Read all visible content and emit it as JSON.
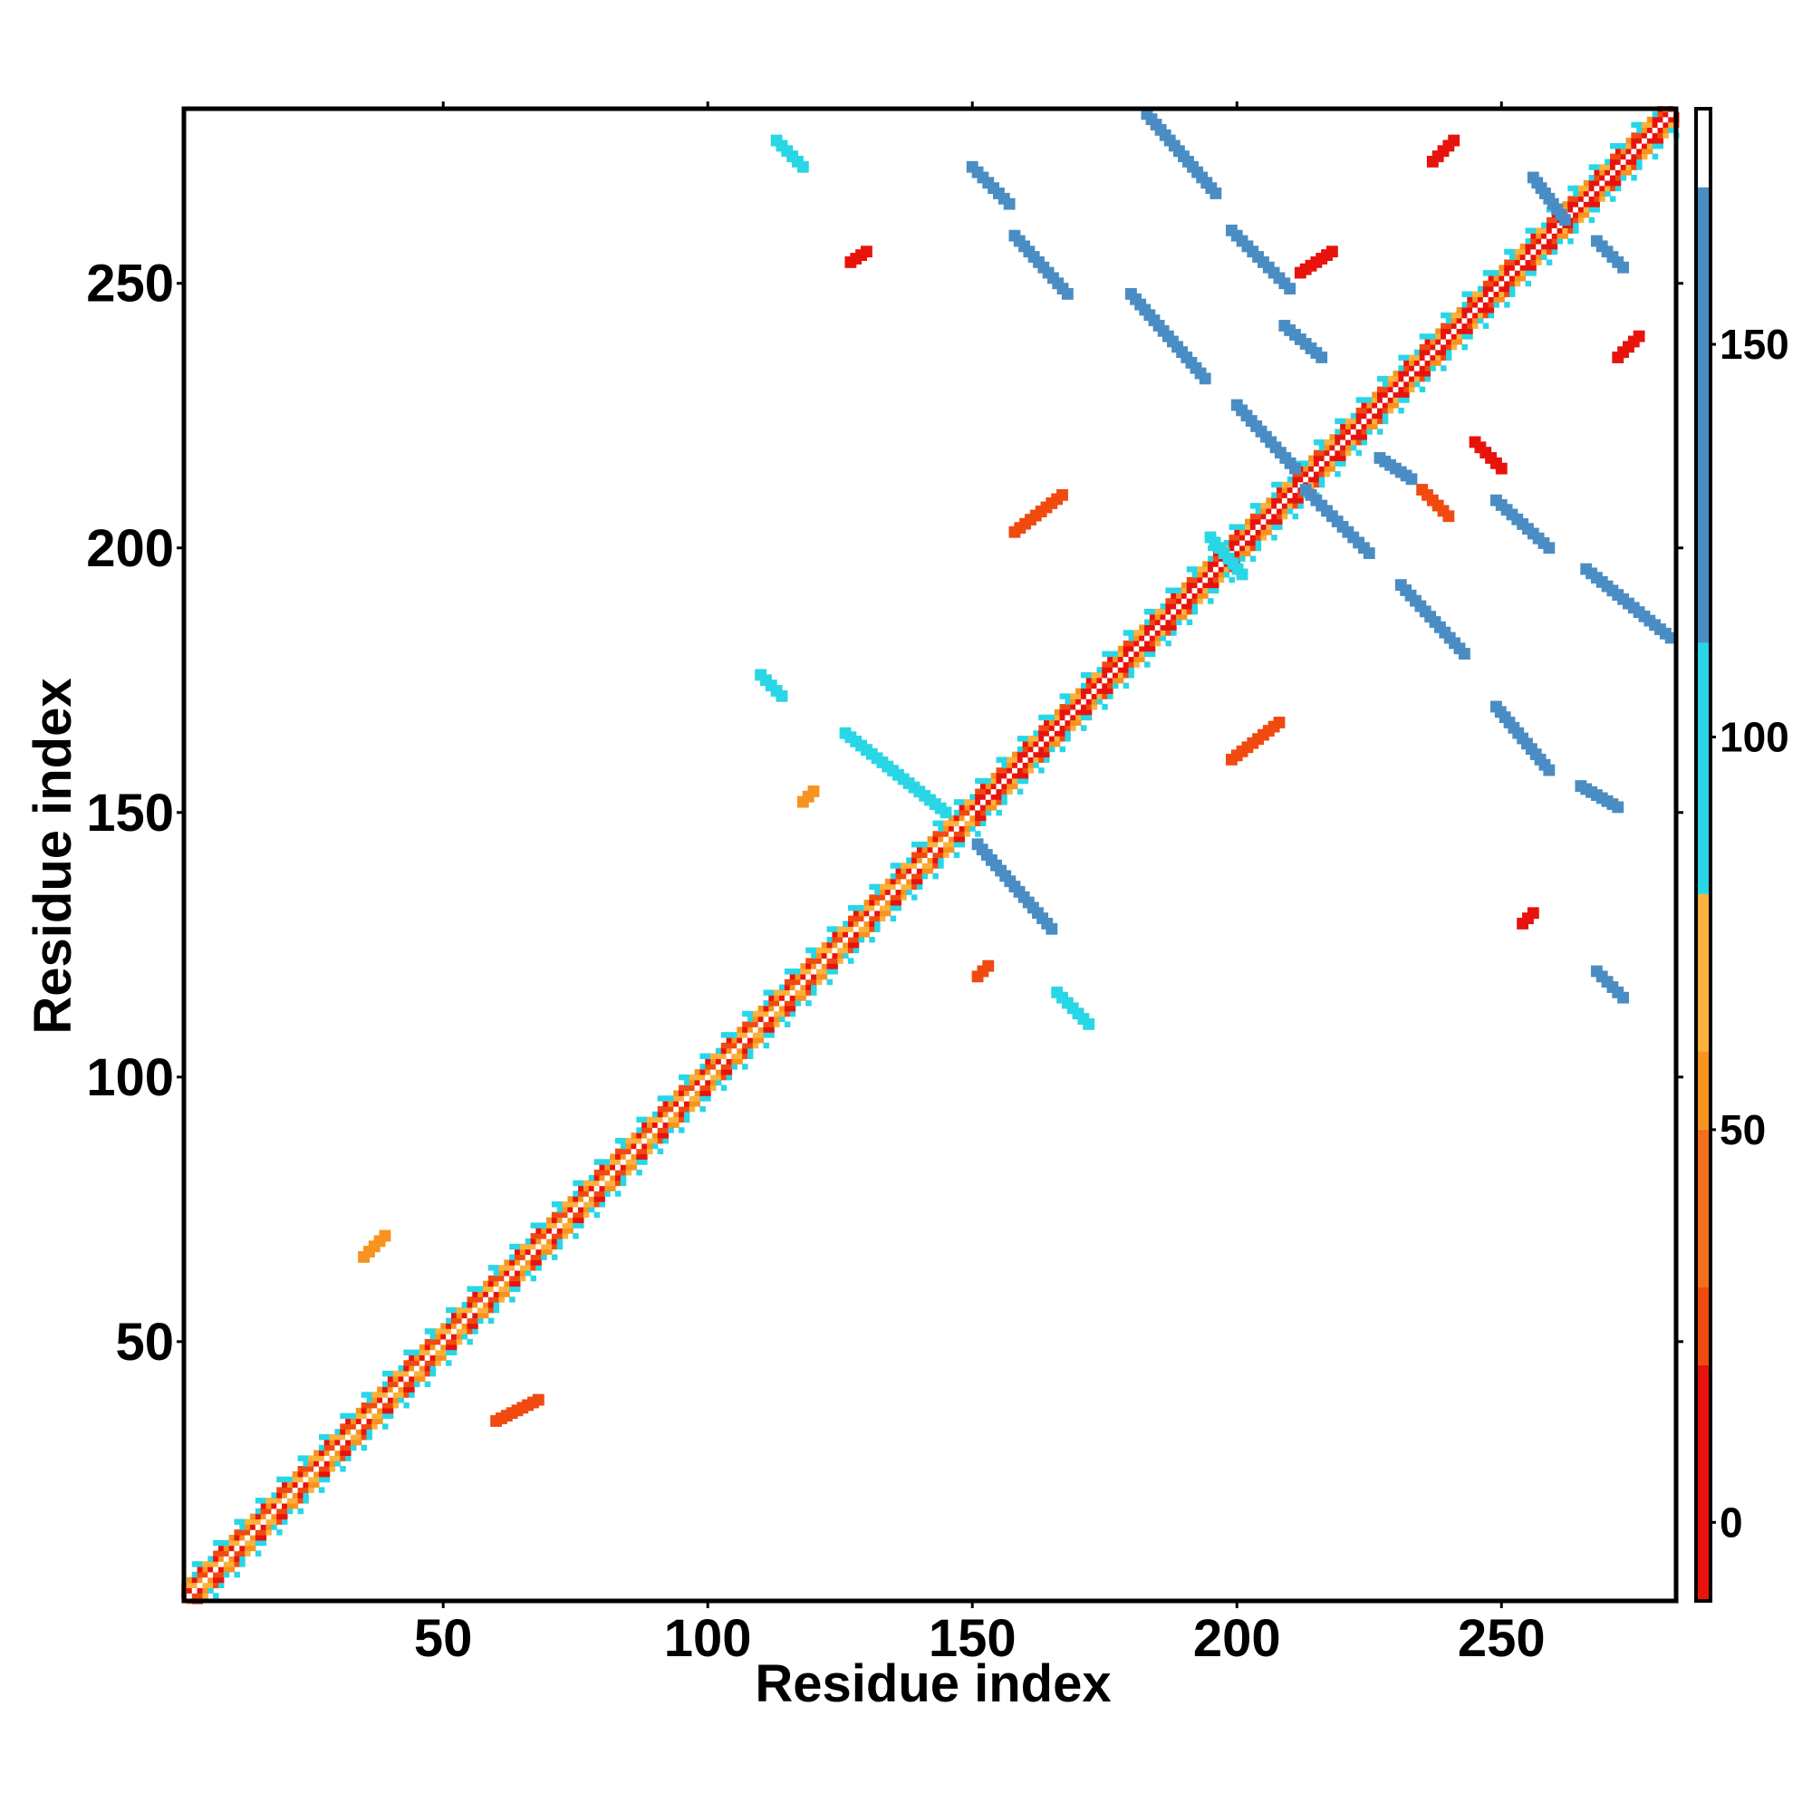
{
  "chart_data": {
    "type": "heatmap",
    "title": "",
    "xlabel": "Residue index",
    "ylabel": "Residue index",
    "xlim": [
      1,
      283
    ],
    "ylim": [
      1,
      283
    ],
    "xticks": [
      50,
      100,
      150,
      200,
      250
    ],
    "yticks": [
      50,
      100,
      150,
      200,
      250
    ],
    "diagonal": {
      "from": 1,
      "to": 283
    },
    "colorbar": {
      "range": [
        -10,
        180
      ],
      "ticks": [
        0,
        50,
        100,
        150
      ],
      "bands": [
        {
          "from": -10,
          "to": 20,
          "color": "#e8130d"
        },
        {
          "from": 20,
          "to": 30,
          "color": "#f04a10"
        },
        {
          "from": 30,
          "to": 50,
          "color": "#f2701a"
        },
        {
          "from": 50,
          "to": 60,
          "color": "#f7931e"
        },
        {
          "from": 60,
          "to": 80,
          "color": "#fbb13c"
        },
        {
          "from": 80,
          "to": 112,
          "color": "#28d6e6"
        },
        {
          "from": 112,
          "to": 170,
          "color": "#4a8dc4"
        },
        {
          "from": 170,
          "to": 180,
          "color": "#ffffff"
        }
      ]
    },
    "contact_segments": [
      {
        "start": [
          113,
          277
        ],
        "end": [
          118,
          272
        ],
        "color": "#28d6e6"
      },
      {
        "start": [
          150,
          272
        ],
        "end": [
          157,
          265
        ],
        "color": "#4a8dc4"
      },
      {
        "start": [
          158,
          259
        ],
        "end": [
          168,
          248
        ],
        "color": "#4a8dc4"
      },
      {
        "start": [
          183,
          282
        ],
        "end": [
          196,
          267
        ],
        "color": "#4a8dc4"
      },
      {
        "start": [
          199,
          260
        ],
        "end": [
          210,
          249
        ],
        "color": "#4a8dc4"
      },
      {
        "start": [
          180,
          248
        ],
        "end": [
          194,
          232
        ],
        "color": "#4a8dc4"
      },
      {
        "start": [
          200,
          227
        ],
        "end": [
          211,
          215
        ],
        "color": "#4a8dc4"
      },
      {
        "start": [
          213,
          211
        ],
        "end": [
          225,
          199
        ],
        "color": "#4a8dc4"
      },
      {
        "start": [
          231,
          193
        ],
        "end": [
          243,
          180
        ],
        "color": "#4a8dc4"
      },
      {
        "start": [
          249,
          209
        ],
        "end": [
          259,
          200
        ],
        "color": "#4a8dc4"
      },
      {
        "start": [
          266,
          196
        ],
        "end": [
          282,
          183
        ],
        "color": "#4a8dc4"
      },
      {
        "start": [
          249,
          170
        ],
        "end": [
          259,
          158
        ],
        "color": "#4a8dc4"
      },
      {
        "start": [
          265,
          155
        ],
        "end": [
          272,
          151
        ],
        "color": "#4a8dc4"
      },
      {
        "start": [
          268,
          120
        ],
        "end": [
          273,
          115
        ],
        "color": "#4a8dc4"
      },
      {
        "start": [
          126,
          165
        ],
        "end": [
          145,
          150
        ],
        "color": "#28d6e6"
      },
      {
        "start": [
          151,
          144
        ],
        "end": [
          165,
          128
        ],
        "color": "#4a8dc4"
      },
      {
        "start": [
          195,
          202
        ],
        "end": [
          201,
          195
        ],
        "color": "#28d6e6"
      },
      {
        "start": [
          235,
          211
        ],
        "end": [
          240,
          206
        ],
        "color": "#f04a10"
      },
      {
        "start": [
          245,
          220
        ],
        "end": [
          250,
          215
        ],
        "color": "#e8130d"
      },
      {
        "start": [
          158,
          203
        ],
        "end": [
          167,
          210
        ],
        "color": "#f04a10"
      },
      {
        "start": [
          199,
          160
        ],
        "end": [
          208,
          167
        ],
        "color": "#f04a10"
      },
      {
        "start": [
          237,
          273
        ],
        "end": [
          241,
          277
        ],
        "color": "#e8130d"
      },
      {
        "start": [
          212,
          252
        ],
        "end": [
          218,
          256
        ],
        "color": "#e8130d"
      },
      {
        "start": [
          272,
          236
        ],
        "end": [
          276,
          240
        ],
        "color": "#e8130d"
      },
      {
        "start": [
          127,
          254
        ],
        "end": [
          130,
          256
        ],
        "color": "#e8130d"
      },
      {
        "start": [
          254,
          129
        ],
        "end": [
          256,
          131
        ],
        "color": "#e8130d"
      },
      {
        "start": [
          35,
          66
        ],
        "end": [
          39,
          70
        ],
        "color": "#f7931e"
      },
      {
        "start": [
          60,
          35
        ],
        "end": [
          68,
          39
        ],
        "color": "#f04a10"
      },
      {
        "start": [
          151,
          119
        ],
        "end": [
          153,
          121
        ],
        "color": "#f04a10"
      },
      {
        "start": [
          118,
          152
        ],
        "end": [
          120,
          154
        ],
        "color": "#f7931e"
      },
      {
        "start": [
          166,
          116
        ],
        "end": [
          172,
          110
        ],
        "color": "#28d6e6"
      },
      {
        "start": [
          110,
          176
        ],
        "end": [
          114,
          172
        ],
        "color": "#28d6e6"
      },
      {
        "start": [
          227,
          217
        ],
        "end": [
          233,
          213
        ],
        "color": "#4a8dc4"
      },
      {
        "start": [
          256,
          270
        ],
        "end": [
          262,
          262
        ],
        "color": "#4a8dc4"
      },
      {
        "start": [
          268,
          258
        ],
        "end": [
          273,
          253
        ],
        "color": "#4a8dc4"
      },
      {
        "start": [
          209,
          242
        ],
        "end": [
          216,
          236
        ],
        "color": "#4a8dc4"
      }
    ]
  }
}
